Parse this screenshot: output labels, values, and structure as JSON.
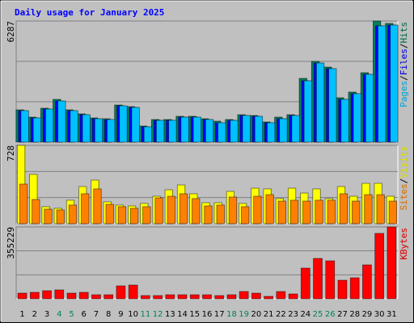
{
  "chart_data": [
    {
      "type": "bar",
      "title": "Daily usage for January 2025",
      "ylim": [
        0,
        6287
      ],
      "yticks": [
        6287
      ],
      "grid_divisions": 3,
      "legend_separator": "/",
      "series": [
        {
          "name": "Hits",
          "color": "#00805c",
          "values": [
            1677,
            1299,
            1760,
            2221,
            1677,
            1467,
            1257,
            1215,
            1928,
            1844,
            838,
            1174,
            1174,
            1341,
            1341,
            1215,
            1090,
            1174,
            1425,
            1383,
            1048,
            1299,
            1425,
            3311,
            4191,
            3898,
            2305,
            2599,
            3605,
            6287,
            6161
          ]
        },
        {
          "name": "Files",
          "color": "#0000ff",
          "values": [
            1635,
            1257,
            1718,
            2137,
            1635,
            1425,
            1215,
            1174,
            1886,
            1802,
            796,
            1132,
            1132,
            1299,
            1299,
            1174,
            1006,
            1132,
            1383,
            1341,
            1006,
            1215,
            1383,
            3185,
            4108,
            3814,
            2221,
            2515,
            3521,
            6036,
            6078
          ]
        },
        {
          "name": "Pages",
          "color": "#00c0ff",
          "values": [
            1635,
            1257,
            1718,
            2137,
            1635,
            1425,
            1215,
            1174,
            1886,
            1802,
            796,
            1132,
            1132,
            1299,
            1299,
            1174,
            1006,
            1132,
            1383,
            1341,
            1006,
            1215,
            1383,
            3185,
            4108,
            3814,
            2221,
            2515,
            3521,
            6036,
            6078
          ]
        }
      ]
    },
    {
      "type": "bar",
      "ylim": [
        0,
        728
      ],
      "yticks": [
        728
      ],
      "grid_divisions": 3,
      "legend_separator": "/",
      "series": [
        {
          "name": "Visits",
          "color": "#ffff00",
          "values": [
            728,
            458,
            158,
            143,
            218,
            345,
            405,
            203,
            173,
            165,
            188,
            255,
            315,
            360,
            278,
            195,
            195,
            300,
            188,
            330,
            323,
            233,
            330,
            285,
            323,
            233,
            345,
            255,
            375,
            375,
            255
          ]
        },
        {
          "name": "Sites",
          "color": "#ff8000",
          "values": [
            368,
            225,
            135,
            128,
            173,
            278,
            323,
            180,
            158,
            143,
            158,
            240,
            255,
            278,
            233,
            165,
            173,
            248,
            158,
            255,
            270,
            210,
            218,
            210,
            218,
            218,
            278,
            210,
            270,
            270,
            210
          ]
        }
      ]
    },
    {
      "type": "bar",
      "ylim": [
        0,
        355229
      ],
      "yticks": [
        355229
      ],
      "grid_divisions": 3,
      "categories": [
        "1",
        "2",
        "3",
        "4",
        "5",
        "6",
        "7",
        "8",
        "9",
        "10",
        "11",
        "12",
        "13",
        "14",
        "15",
        "16",
        "17",
        "18",
        "19",
        "20",
        "21",
        "22",
        "23",
        "24",
        "25",
        "26",
        "27",
        "28",
        "29",
        "30",
        "31"
      ],
      "label_colors": [
        "#000000",
        "#000000",
        "#000000",
        "#00805c",
        "#00805c",
        "#000000",
        "#000000",
        "#000000",
        "#000000",
        "#000000",
        "#00805c",
        "#00805c",
        "#000000",
        "#000000",
        "#000000",
        "#000000",
        "#000000",
        "#00805c",
        "#00805c",
        "#000000",
        "#000000",
        "#000000",
        "#000000",
        "#000000",
        "#00805c",
        "#00805c",
        "#000000",
        "#000000",
        "#000000",
        "#000000",
        "#000000"
      ],
      "series": [
        {
          "name": "KBytes",
          "color": "#ff0000",
          "values": [
            27939,
            31931,
            39913,
            43905,
            27939,
            31931,
            19957,
            19957,
            63861,
            67852,
            15965,
            15965,
            19957,
            19957,
            19957,
            19957,
            15965,
            19957,
            35922,
            27939,
            11974,
            35922,
            23948,
            151670,
            199567,
            187594,
            91802,
            103775,
            167636,
            323300,
            355229
          ]
        }
      ]
    }
  ]
}
